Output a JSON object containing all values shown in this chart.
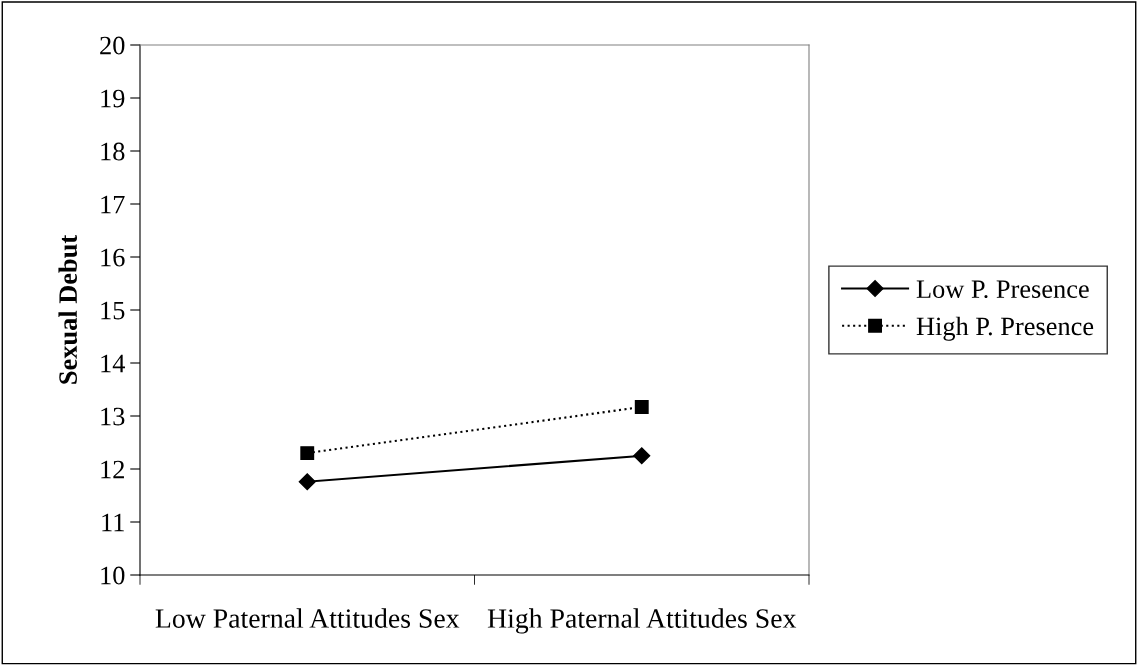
{
  "chart_data": {
    "type": "line",
    "ylabel": "Sexual Debut",
    "categories": [
      "Low Paternal Attitudes Sex",
      "High Paternal Attitudes Sex"
    ],
    "series": [
      {
        "name": "Low P. Presence",
        "color": "#000000",
        "values": [
          11.76,
          12.25
        ],
        "marker": "diamond",
        "line_style": "solid"
      },
      {
        "name": "High P. Presence",
        "color": "#000000",
        "values": [
          12.3,
          13.17
        ],
        "marker": "square",
        "line_style": "dotted"
      }
    ],
    "ylim": [
      10,
      20
    ],
    "yticks": [
      10,
      11,
      12,
      13,
      14,
      15,
      16,
      17,
      18,
      19,
      20
    ],
    "grid": false,
    "legend": "right"
  }
}
